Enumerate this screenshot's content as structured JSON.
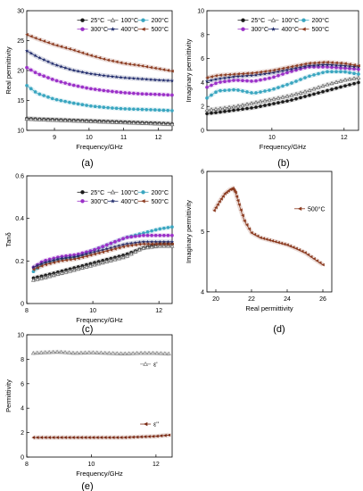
{
  "panel_labels": [
    "(a)",
    "(b)",
    "(c)",
    "(d)",
    "(e)"
  ],
  "chart_data": [
    {
      "panel": "(a)",
      "type": "line",
      "xlabel": "Frequency/GHz",
      "ylabel": "Real permittivity",
      "xlim": [
        8.2,
        12.4
      ],
      "ylim": [
        10,
        30
      ],
      "xticks": [
        9,
        10,
        11,
        12
      ],
      "yticks": [
        10,
        15,
        20,
        25,
        30
      ],
      "legend_position": "top-right",
      "series": [
        {
          "name": "25°C",
          "color": "#1a1a1a",
          "marker": "circle",
          "x": [
            8.2,
            8.5,
            9,
            9.5,
            10,
            10.5,
            11,
            11.5,
            12,
            12.4
          ],
          "y": [
            12.0,
            11.9,
            11.8,
            11.7,
            11.6,
            11.5,
            11.4,
            11.3,
            11.2,
            11.1
          ]
        },
        {
          "name": "100°C",
          "color": "#6e6e6e",
          "marker": "open-triangle",
          "x": [
            8.2,
            8.5,
            9,
            9.5,
            10,
            10.5,
            11,
            11.5,
            12,
            12.4
          ],
          "y": [
            11.9,
            11.8,
            11.7,
            11.6,
            11.5,
            11.4,
            11.3,
            11.2,
            11.1,
            11.0
          ]
        },
        {
          "name": "200°C",
          "color": "#3aa6c0",
          "marker": "circle",
          "x": [
            8.2,
            8.5,
            9,
            9.5,
            10,
            10.5,
            11,
            11.5,
            12,
            12.4
          ],
          "y": [
            17.5,
            16.2,
            15.2,
            14.6,
            14.1,
            13.8,
            13.6,
            13.5,
            13.4,
            13.3
          ]
        },
        {
          "name": "300°C",
          "color": "#9b30c8",
          "marker": "circle",
          "x": [
            8.2,
            8.5,
            9,
            9.5,
            10,
            10.5,
            11,
            11.5,
            12,
            12.4
          ],
          "y": [
            20.5,
            19.5,
            18.4,
            17.6,
            17.0,
            16.6,
            16.3,
            16.1,
            16.0,
            15.9
          ]
        },
        {
          "name": "400°C",
          "color": "#1f2a6b",
          "marker": "star",
          "x": [
            8.2,
            8.5,
            9,
            9.5,
            10,
            10.5,
            11,
            11.5,
            12,
            12.4
          ],
          "y": [
            23.3,
            22.3,
            21.0,
            20.1,
            19.5,
            19.1,
            18.8,
            18.6,
            18.4,
            18.3
          ]
        },
        {
          "name": "500°C",
          "color": "#8b3a1f",
          "marker": "left-triangle",
          "x": [
            8.2,
            8.5,
            9,
            9.5,
            10,
            10.5,
            11,
            11.5,
            12,
            12.4
          ],
          "y": [
            26.0,
            25.3,
            24.3,
            23.5,
            22.6,
            21.8,
            21.2,
            20.8,
            20.3,
            19.9
          ]
        }
      ]
    },
    {
      "panel": "(b)",
      "type": "line",
      "xlabel": "Frequency/GHz",
      "ylabel": "Imaginary permittivity",
      "xlim": [
        8.2,
        12.4
      ],
      "ylim": [
        0,
        10
      ],
      "xticks": [
        10,
        12
      ],
      "yticks": [
        0,
        2,
        4,
        6,
        8,
        10
      ],
      "legend_position": "top-right",
      "series": [
        {
          "name": "25°C",
          "color": "#1a1a1a",
          "marker": "circle",
          "x": [
            8.2,
            8.5,
            9,
            9.5,
            10,
            10.5,
            11,
            11.5,
            12,
            12.4
          ],
          "y": [
            1.4,
            1.5,
            1.7,
            1.9,
            2.2,
            2.5,
            2.9,
            3.3,
            3.7,
            4.0
          ]
        },
        {
          "name": "100°C",
          "color": "#6e6e6e",
          "marker": "open-triangle",
          "x": [
            8.2,
            8.5,
            9,
            9.5,
            10,
            10.5,
            11,
            11.5,
            12,
            12.4
          ],
          "y": [
            1.7,
            1.8,
            2.0,
            2.3,
            2.6,
            2.9,
            3.3,
            3.8,
            4.2,
            4.4
          ]
        },
        {
          "name": "200°C",
          "color": "#3aa6c0",
          "marker": "circle",
          "x": [
            8.2,
            8.5,
            9,
            9.5,
            10,
            10.5,
            11,
            11.5,
            12,
            12.4
          ],
          "y": [
            2.7,
            3.3,
            3.4,
            3.1,
            3.4,
            3.9,
            4.5,
            4.9,
            4.9,
            4.7
          ]
        },
        {
          "name": "300°C",
          "color": "#9b30c8",
          "marker": "circle",
          "x": [
            8.2,
            8.5,
            9,
            9.5,
            10,
            10.5,
            11,
            11.5,
            12,
            12.4
          ],
          "y": [
            3.6,
            4.0,
            4.2,
            4.1,
            4.4,
            4.9,
            5.3,
            5.3,
            5.2,
            5.1
          ]
        },
        {
          "name": "400°C",
          "color": "#1f2a6b",
          "marker": "star",
          "x": [
            8.2,
            8.5,
            9,
            9.5,
            10,
            10.5,
            11,
            11.5,
            12,
            12.4
          ],
          "y": [
            4.1,
            4.3,
            4.5,
            4.6,
            4.8,
            5.1,
            5.4,
            5.5,
            5.4,
            5.3
          ]
        },
        {
          "name": "500°C",
          "color": "#8b3a1f",
          "marker": "left-triangle",
          "x": [
            8.2,
            8.5,
            9,
            9.5,
            10,
            10.5,
            11,
            11.5,
            12,
            12.4
          ],
          "y": [
            4.4,
            4.6,
            4.7,
            4.8,
            5.0,
            5.3,
            5.6,
            5.7,
            5.6,
            5.4
          ]
        }
      ]
    },
    {
      "panel": "(c)",
      "type": "line",
      "xlabel": "Frequency/GHz",
      "ylabel": "Tanδ",
      "xlim": [
        8.0,
        12.4
      ],
      "ylim": [
        0,
        0.6
      ],
      "xticks": [
        8,
        10,
        12
      ],
      "yticks": [
        0,
        0.2,
        0.4,
        0.6
      ],
      "legend_position": "top-right",
      "series": [
        {
          "name": "25°C",
          "color": "#1a1a1a",
          "marker": "circle",
          "x": [
            8.2,
            8.5,
            9,
            9.5,
            10,
            10.5,
            11,
            11.5,
            12,
            12.4
          ],
          "y": [
            0.12,
            0.13,
            0.15,
            0.17,
            0.19,
            0.21,
            0.23,
            0.26,
            0.28,
            0.28
          ]
        },
        {
          "name": "100°C",
          "color": "#6e6e6e",
          "marker": "open-triangle",
          "x": [
            8.2,
            8.5,
            9,
            9.5,
            10,
            10.5,
            11,
            11.5,
            12,
            12.4
          ],
          "y": [
            0.11,
            0.12,
            0.14,
            0.16,
            0.18,
            0.2,
            0.22,
            0.26,
            0.27,
            0.27
          ]
        },
        {
          "name": "200°C",
          "color": "#3aa6c0",
          "marker": "circle",
          "x": [
            8.2,
            8.5,
            9,
            9.5,
            10,
            10.5,
            11,
            11.5,
            12,
            12.4
          ],
          "y": [
            0.15,
            0.19,
            0.21,
            0.22,
            0.25,
            0.28,
            0.31,
            0.33,
            0.35,
            0.36
          ]
        },
        {
          "name": "300°C",
          "color": "#9b30c8",
          "marker": "circle",
          "x": [
            8.2,
            8.5,
            9,
            9.5,
            10,
            10.5,
            11,
            11.5,
            12,
            12.4
          ],
          "y": [
            0.17,
            0.2,
            0.22,
            0.23,
            0.25,
            0.28,
            0.31,
            0.32,
            0.32,
            0.32
          ]
        },
        {
          "name": "400°C",
          "color": "#1f2a6b",
          "marker": "star",
          "x": [
            8.2,
            8.5,
            9,
            9.5,
            10,
            10.5,
            11,
            11.5,
            12,
            12.4
          ],
          "y": [
            0.17,
            0.19,
            0.21,
            0.22,
            0.24,
            0.26,
            0.28,
            0.29,
            0.29,
            0.29
          ]
        },
        {
          "name": "500°C",
          "color": "#8b3a1f",
          "marker": "left-triangle",
          "x": [
            8.2,
            8.5,
            9,
            9.5,
            10,
            10.5,
            11,
            11.5,
            12,
            12.4
          ],
          "y": [
            0.16,
            0.18,
            0.2,
            0.21,
            0.23,
            0.25,
            0.27,
            0.28,
            0.28,
            0.28
          ]
        }
      ]
    },
    {
      "panel": "(d)",
      "type": "line",
      "xlabel": "Real permittivity",
      "ylabel": "Imaginary permittivity",
      "xlim": [
        19.5,
        26.5
      ],
      "ylim": [
        4,
        6
      ],
      "xticks": [
        20,
        22,
        24,
        26
      ],
      "yticks": [
        4,
        5,
        6
      ],
      "legend_position": "top-right",
      "series": [
        {
          "name": "500°C",
          "color": "#8b3a1f",
          "marker": "left-triangle",
          "x": [
            19.9,
            20.2,
            20.5,
            20.8,
            20.95,
            21.1,
            21.3,
            21.6,
            22.0,
            22.5,
            23.0,
            23.5,
            24.0,
            24.5,
            25.0,
            25.5,
            26.0
          ],
          "y": [
            5.35,
            5.5,
            5.63,
            5.7,
            5.72,
            5.65,
            5.45,
            5.18,
            4.98,
            4.9,
            4.86,
            4.82,
            4.78,
            4.72,
            4.65,
            4.55,
            4.45
          ]
        }
      ]
    },
    {
      "panel": "(e)",
      "type": "line",
      "xlabel": "Frequency/GHz",
      "ylabel": "Permittivity",
      "xlim": [
        8.0,
        12.5
      ],
      "ylim": [
        0,
        10
      ],
      "xticks": [
        8,
        10,
        12
      ],
      "yticks": [
        0,
        2,
        4,
        6,
        8,
        10
      ],
      "legend_position": "right",
      "series": [
        {
          "name": "ε'",
          "color": "#8a8a8a",
          "marker": "open-triangle",
          "x": [
            8.2,
            8.5,
            9,
            9.5,
            10,
            10.5,
            11,
            11.5,
            12,
            12.4
          ],
          "y": [
            8.5,
            8.55,
            8.6,
            8.5,
            8.55,
            8.5,
            8.45,
            8.5,
            8.5,
            8.45
          ]
        },
        {
          "name": "ε''",
          "color": "#7a2a14",
          "marker": "left-triangle",
          "x": [
            8.2,
            8.5,
            9,
            9.5,
            10,
            10.5,
            11,
            11.5,
            12,
            12.4
          ],
          "y": [
            1.6,
            1.6,
            1.6,
            1.6,
            1.6,
            1.6,
            1.6,
            1.65,
            1.7,
            1.8
          ]
        }
      ]
    }
  ]
}
